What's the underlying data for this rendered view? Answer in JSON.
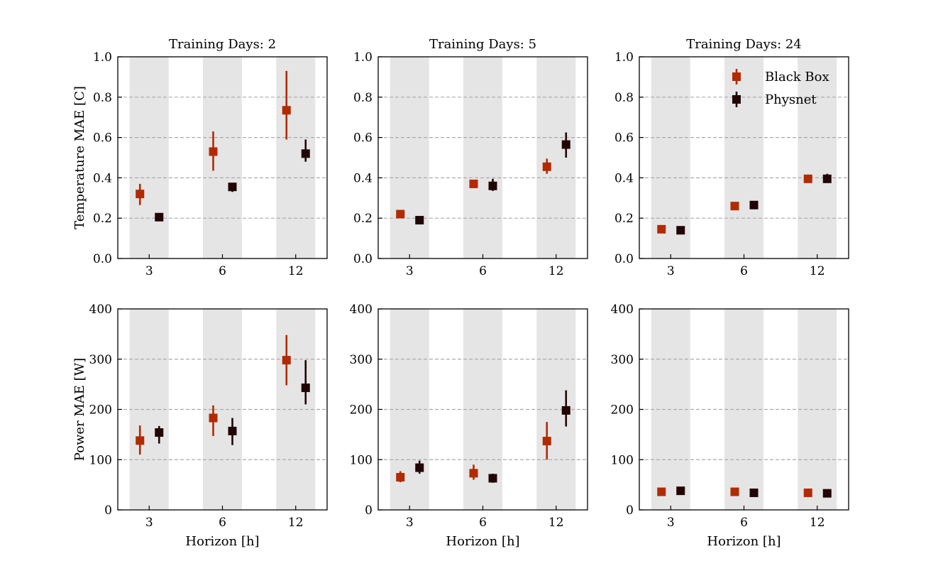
{
  "chart_data": [
    {
      "type": "scatter",
      "title": "Training Days: 2",
      "xlabel": "",
      "ylabel": "Temperature MAE [C]",
      "categories": [
        "3",
        "6",
        "12"
      ],
      "ylim": [
        0.0,
        1.0
      ],
      "yticks": [
        "0.0",
        "0.2",
        "0.4",
        "0.6",
        "0.8",
        "1.0"
      ],
      "series": [
        {
          "name": "Black Box",
          "values": [
            0.32,
            0.53,
            0.735
          ],
          "err_low": [
            0.265,
            0.435,
            0.59
          ],
          "err_high": [
            0.37,
            0.63,
            0.93
          ]
        },
        {
          "name": "Physnet",
          "values": [
            0.205,
            0.355,
            0.52
          ],
          "err_low": [
            0.195,
            0.33,
            0.48
          ],
          "err_high": [
            0.215,
            0.375,
            0.59
          ]
        }
      ]
    },
    {
      "type": "scatter",
      "title": "Training Days: 5",
      "xlabel": "",
      "ylabel": "",
      "categories": [
        "3",
        "6",
        "12"
      ],
      "ylim": [
        0.0,
        1.0
      ],
      "yticks": [
        "0.0",
        "0.2",
        "0.4",
        "0.6",
        "0.8",
        "1.0"
      ],
      "series": [
        {
          "name": "Black Box",
          "values": [
            0.22,
            0.37,
            0.455
          ],
          "err_low": [
            0.21,
            0.36,
            0.42
          ],
          "err_high": [
            0.23,
            0.38,
            0.495
          ]
        },
        {
          "name": "Physnet",
          "values": [
            0.19,
            0.36,
            0.565
          ],
          "err_low": [
            0.18,
            0.335,
            0.5
          ],
          "err_high": [
            0.2,
            0.395,
            0.625
          ]
        }
      ]
    },
    {
      "type": "scatter",
      "title": "Training Days: 24",
      "xlabel": "",
      "ylabel": "",
      "categories": [
        "3",
        "6",
        "12"
      ],
      "ylim": [
        0.0,
        1.0
      ],
      "yticks": [
        "0.0",
        "0.2",
        "0.4",
        "0.6",
        "0.8",
        "1.0"
      ],
      "legend": {
        "position": "top-right",
        "entries": [
          "Black Box",
          "Physnet"
        ]
      },
      "series": [
        {
          "name": "Black Box",
          "values": [
            0.145,
            0.26,
            0.395
          ],
          "err_low": [
            0.14,
            0.255,
            0.375
          ],
          "err_high": [
            0.15,
            0.265,
            0.415
          ]
        },
        {
          "name": "Physnet",
          "values": [
            0.14,
            0.265,
            0.395
          ],
          "err_low": [
            0.135,
            0.26,
            0.375
          ],
          "err_high": [
            0.145,
            0.27,
            0.42
          ]
        }
      ]
    },
    {
      "type": "scatter",
      "title": "",
      "xlabel": "Horizon [h]",
      "ylabel": "Power MAE [W]",
      "categories": [
        "3",
        "6",
        "12"
      ],
      "ylim": [
        0,
        400
      ],
      "yticks": [
        "0",
        "100",
        "200",
        "300",
        "400"
      ],
      "series": [
        {
          "name": "Black Box",
          "values": [
            138,
            183,
            298
          ],
          "err_low": [
            110,
            147,
            248
          ],
          "err_high": [
            168,
            208,
            348
          ]
        },
        {
          "name": "Physnet",
          "values": [
            154,
            157,
            243
          ],
          "err_low": [
            132,
            129,
            210
          ],
          "err_high": [
            167,
            183,
            298
          ]
        }
      ]
    },
    {
      "type": "scatter",
      "title": "",
      "xlabel": "Horizon [h]",
      "ylabel": "",
      "categories": [
        "3",
        "6",
        "12"
      ],
      "ylim": [
        0,
        400
      ],
      "yticks": [
        "0",
        "100",
        "200",
        "300",
        "400"
      ],
      "series": [
        {
          "name": "Black Box",
          "values": [
            65,
            73,
            137
          ],
          "err_low": [
            55,
            60,
            100
          ],
          "err_high": [
            77,
            90,
            175
          ]
        },
        {
          "name": "Physnet",
          "values": [
            84,
            63,
            198
          ],
          "err_low": [
            72,
            54,
            166
          ],
          "err_high": [
            98,
            72,
            238
          ]
        }
      ]
    },
    {
      "type": "scatter",
      "title": "",
      "xlabel": "Horizon [h]",
      "ylabel": "",
      "categories": [
        "3",
        "6",
        "12"
      ],
      "ylim": [
        0,
        400
      ],
      "yticks": [
        "0",
        "100",
        "200",
        "300",
        "400"
      ],
      "series": [
        {
          "name": "Black Box",
          "values": [
            36,
            36,
            34
          ],
          "err_low": [
            33,
            33,
            31
          ],
          "err_high": [
            39,
            40,
            37
          ]
        },
        {
          "name": "Physnet",
          "values": [
            38,
            34,
            33
          ],
          "err_low": [
            34,
            31,
            30
          ],
          "err_high": [
            42,
            37,
            36
          ]
        }
      ]
    }
  ],
  "colors": {
    "black_box": "#b22a00",
    "physnet": "#220505",
    "band": "#e5e5e5",
    "grid": "#aaaaaa",
    "axis": "#000000"
  },
  "legend": {
    "entries": [
      {
        "label": "Black Box",
        "series": "black_box"
      },
      {
        "label": "Physnet",
        "series": "physnet"
      }
    ]
  }
}
